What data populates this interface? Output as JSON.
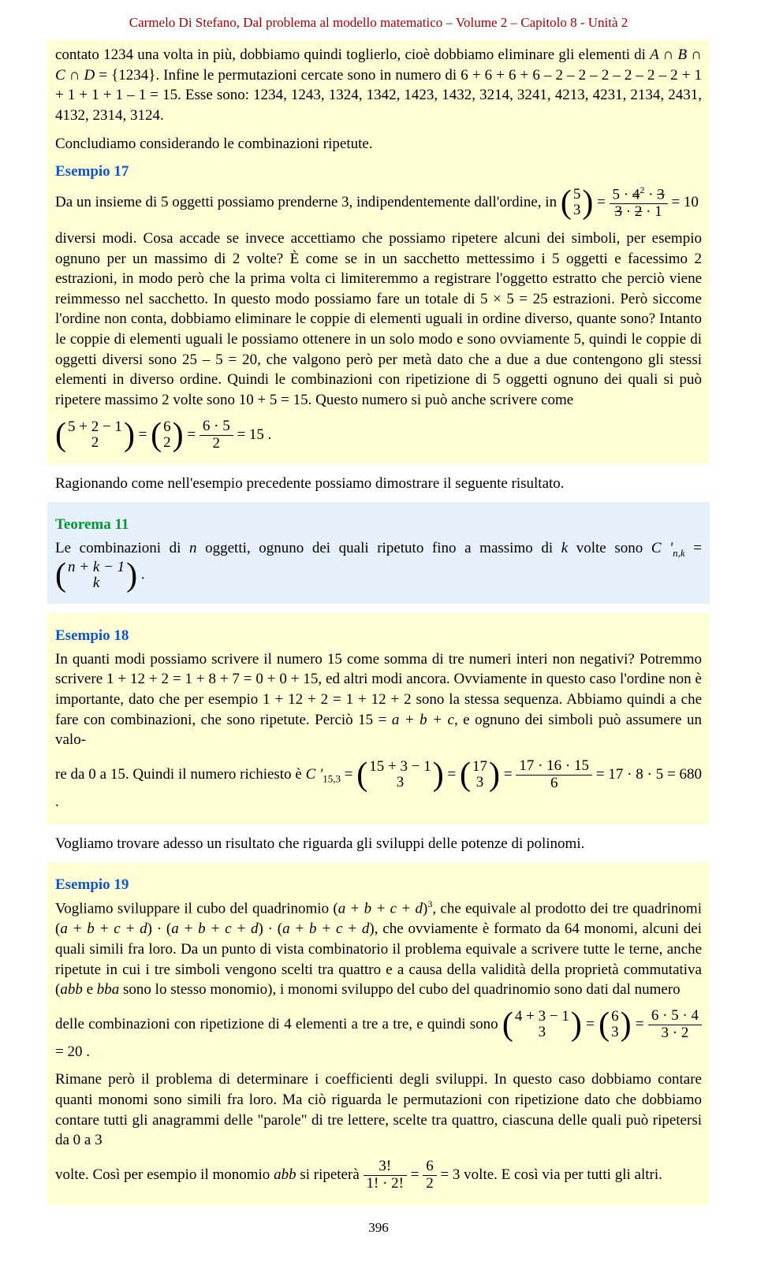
{
  "header": "Carmelo Di Stefano, Dal problema al modello matematico – Volume 2 – Capitolo 8 - Unità 2",
  "intro": {
    "p1a": "contato 1234 una volta in più, dobbiamo quindi toglierlo, cioè dobbiamo eliminare gli elementi di ",
    "p1b": "A ∩ B ∩ C ∩ D",
    "p1c": " = {1234}. Infine le permutazioni cercate sono in numero di 6 + 6 + 6 + 6 – 2 – 2 – 2 – 2 – 2 – 2 + 1 + 1 + 1 + 1 – 1 = 15. Esse sono: 1234, 1243, 1324, 1342, 1423, 1432, 3214, 3241, 4213, 4231, 2134, 2431, 4132, 2314, 3124.",
    "p2": "Concludiamo considerando le combinazioni ripetute."
  },
  "ex17": {
    "title": "Esempio 17",
    "p1a": "Da un insieme di 5 oggetti possiamo prenderne 3, indipendentemente dall'ordine, in ",
    "bin1top": "5",
    "bin1bot": "3",
    "frac1num_a": "5 · ",
    "frac1num_b": "4",
    "frac1num_c": "3",
    "frac1den_a": "3",
    "frac1den_b": " · ",
    "frac1den_c": "2",
    "frac1den_d": " · 1",
    "frac1num_sup": "2",
    "eq10": " = 10",
    "p1b": "diversi modi. Cosa accade se invece accettiamo che possiamo ripetere alcuni dei simboli, per esempio ognuno per un massimo di 2 volte? È come se in un sacchetto mettessimo i 5 oggetti e facessimo 2 estrazioni, in modo però che la prima volta ci limiteremmo a registrare l'oggetto estratto che perciò viene reimmesso nel sacchetto. In questo modo possiamo fare un totale di 5 × 5 = 25 estrazioni. Però siccome l'ordine non conta, dobbiamo eliminare le coppie di elementi uguali in ordine diverso, quante sono? Intanto le coppie di elementi uguali le possiamo ottenere in un solo modo e sono ovviamente 5, quindi le coppie di oggetti diversi sono 25 – 5 = 20, che valgono però per metà dato che a due a due contengono gli stessi elementi in diverso ordine. Quindi le combinazioni con ripetizione di 5 oggetti ognuno dei quali si può ripetere massimo 2 volte sono 10 + 5 = 15. Questo numero si può anche scrivere come ",
    "bin2top": "5 + 2 − 1",
    "bin2bot": "2",
    "bin3top": "6",
    "bin3bot": "2",
    "frac2num": "6 · 5",
    "frac2den": "2",
    "eq15": " = 15 ."
  },
  "rag": "Ragionando come nell'esempio precedente possiamo dimostrare il seguente risultato.",
  "th11": {
    "title": "Teorema 11",
    "p_a": "Le combinazioni di ",
    "n": "n",
    "p_b": " oggetti, ognuno dei quali ripetuto fino a massimo di ",
    "k": "k",
    "p_c": " volte sono ",
    "c": "C '",
    "sub": "n,k",
    "eq": " = ",
    "bin_top_a": "n + k − 1",
    "bin_bot": "k",
    "dot": " ."
  },
  "ex18": {
    "title": "Esempio 18",
    "p1": "In quanti modi possiamo scrivere il numero 15 come somma di tre numeri interi non negativi? Potremmo scrivere 1 + 12 + 2 = 1 + 8 + 7 = 0 + 0 + 15, ed altri modi ancora. Ovviamente in questo caso l'ordine non è importante, dato che per esempio 1 + 12 + 2 = 1 + 12 + 2 sono la stessa sequenza. Abbiamo quindi a che fare con combinazioni, che sono ripetute. Perciò 15 = ",
    "abc": "a + b + c",
    "p1b": ", e ognuno dei simboli può assumere un valo-",
    "p2a": "re da 0 a 15. Quindi il numero richiesto è ",
    "c": "C '",
    "sub": "15,3",
    "eq": " = ",
    "bin1top": "15 + 3 − 1",
    "bin1bot": "3",
    "bin2top": "17",
    "bin2bot": "3",
    "fracnum": "17 · 16 · 15",
    "fracden": "6",
    "res": " = 17 · 8 · 5 = 680 ."
  },
  "vogl1": "Vogliamo trovare adesso un risultato che riguarda gli sviluppi delle potenze di polinomi.",
  "ex19": {
    "title": "Esempio 19",
    "p1a": "Vogliamo sviluppare il cubo del quadrinomio (",
    "q": "a + b + c + d",
    "p1b": ")",
    "exp3": "3",
    "p1c": ", che equivale al prodotto dei tre quadrinomi (",
    "p1d": ") · (",
    "p1e": ") · (",
    "p1f": "), che ovviamente è formato da 64 monomi, alcuni dei quali simili fra loro. Da un punto di vista combinatorio il problema equivale a scrivere tutte le terne, anche ripetute in cui i tre simboli vengono scelti tra quattro e a causa della validità della proprietà commutativa (",
    "abb": "abb",
    "p1g": " e ",
    "bba": "bba",
    "p1h": " sono lo stesso monomio), i monomi sviluppo del cubo del quadrinomio sono dati dal numero",
    "p2a": "delle combinazioni con ripetizione di 4 elementi a tre a tre, e quindi sono ",
    "bin1top": "4 + 3 − 1",
    "bin1bot": "3",
    "bin2top": "6",
    "bin2bot": "3",
    "fracnum": "6 · 5 · 4",
    "fracden": "3 · 2",
    "eq20": " = 20 .",
    "p3": "Rimane però il problema di determinare i coefficienti degli sviluppi. In questo caso dobbiamo contare quanti monomi sono simili fra loro. Ma ciò riguarda le permutazioni con ripetizione dato che dobbiamo contare tutti gli anagrammi delle \"parole\" di tre lettere, scelte tra quattro, ciascuna delle quali può ripetersi da 0 a 3",
    "p4a": "volte. Così per esempio il monomio ",
    "abb2": "abb",
    "p4b": " si ripeterà ",
    "f1num": "3!",
    "f1den": "1! · 2!",
    "f2num": "6",
    "f2den": "2",
    "eq3": " = 3",
    "p4c": " volte. E così via per tutti gli altri."
  },
  "pagenum": "396"
}
